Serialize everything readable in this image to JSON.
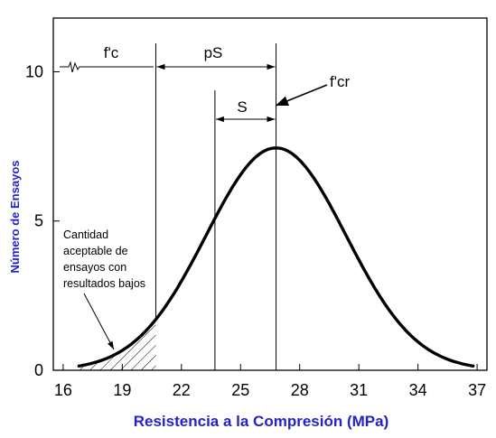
{
  "chart_data": {
    "type": "line",
    "xlabel": "Resistencia a la Compresión (MPa)",
    "ylabel": "Número de Ensayos",
    "x_ticks": [
      16,
      19,
      22,
      25,
      28,
      31,
      34,
      37
    ],
    "y_ticks": [
      0,
      5,
      10
    ],
    "xlim": [
      15.5,
      37.5
    ],
    "ylim": [
      0,
      11.8
    ],
    "curve": {
      "name": "",
      "distribution": "normal",
      "peak_x": 26.8,
      "peak_y": 7.45,
      "x_start": 16.8,
      "x_end": 36.8
    },
    "markers": {
      "fc": 20.7,
      "fc_minus_s": 23.7,
      "fcr": 26.8
    },
    "annotations": {
      "fc": "f'c",
      "ps": "pS",
      "s": "S",
      "fcr": "f'cr",
      "note_lines": [
        "Cantidad",
        "aceptable de",
        "ensayos con",
        "resultados bajos"
      ]
    },
    "colors": {
      "axis_title": "#2323c8",
      "line": "#000000"
    }
  }
}
